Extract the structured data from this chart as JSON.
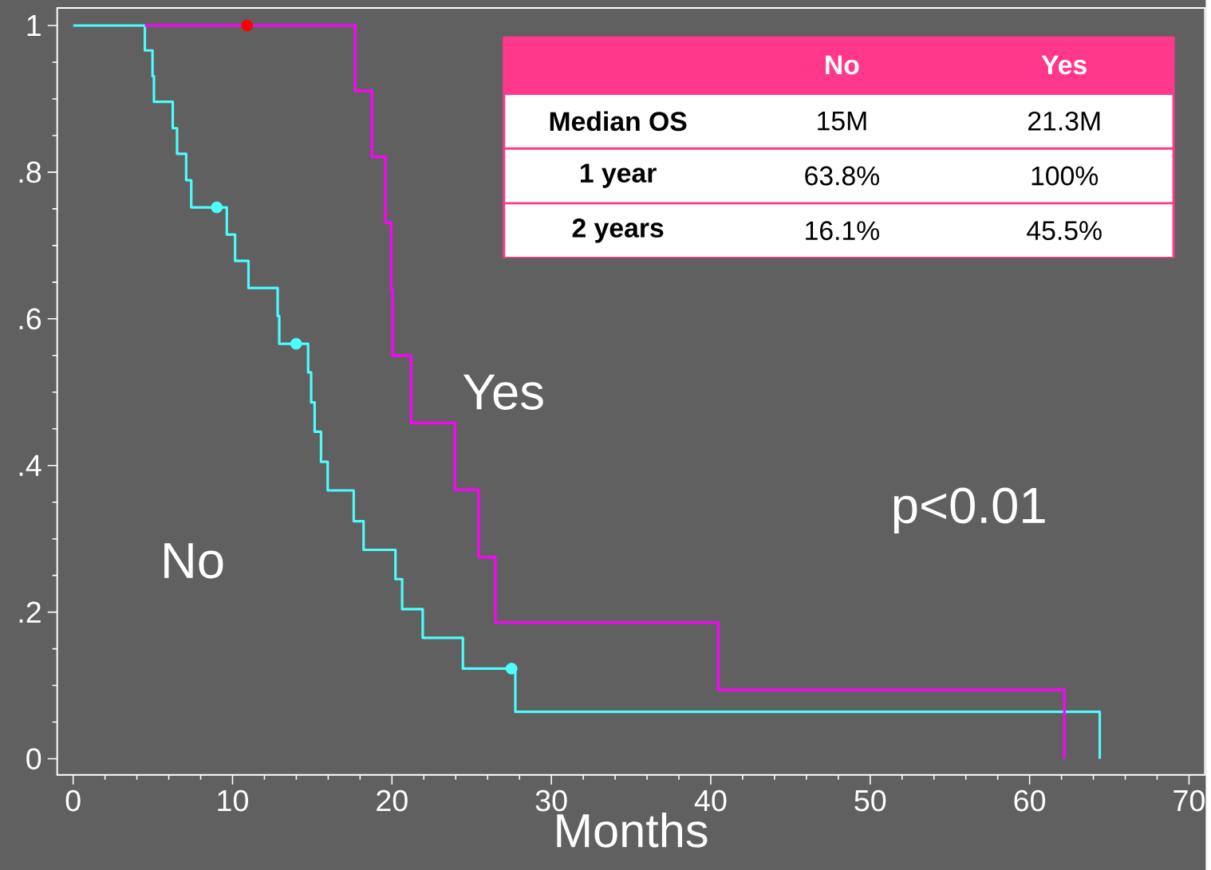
{
  "chart_data": {
    "type": "step",
    "xlabel": "Months",
    "xlim": [
      -1,
      71
    ],
    "ylim": [
      -0.022,
      1.024
    ],
    "xticks": [
      0,
      10,
      20,
      30,
      40,
      50,
      60,
      70
    ],
    "yticks": [
      0,
      {
        "value": 0.2,
        "label": ".2"
      },
      {
        "value": 0.4,
        "label": ".4"
      },
      {
        "value": 0.6,
        "label": ".6"
      },
      {
        "value": 0.8,
        "label": ".8"
      },
      1
    ],
    "marker": "none",
    "line_style": "solid",
    "annotations": [
      "No",
      "Yes",
      "Median OS",
      "15M",
      "21.3M",
      "1 year",
      "63.8%",
      "100%",
      "2 years",
      "16.1%",
      "45.5%",
      "p<0.01"
    ],
    "series": [
      {
        "name": "No",
        "color": "#4dfcfc",
        "x": [
          0,
          4.5,
          4.98,
          5.07,
          6.25,
          6.52,
          7.09,
          7.41,
          9.64,
          10.16,
          11.0,
          12.83,
          12.93,
          14.74,
          14.93,
          15.15,
          15.55,
          15.97,
          17.6,
          18.22,
          20.22,
          20.64,
          21.93,
          24.45,
          27.74,
          64.4
        ],
        "values": [
          1,
          0.966,
          0.931,
          0.896,
          0.86,
          0.825,
          0.789,
          0.752,
          0.715,
          0.679,
          0.642,
          0.604,
          0.566,
          0.527,
          0.486,
          0.446,
          0.405,
          0.366,
          0.324,
          0.285,
          0.245,
          0.204,
          0.165,
          0.123,
          0.064,
          0
        ]
      },
      {
        "name": "Yes",
        "color": "#ff00ff",
        "x": [
          4.5,
          17.69,
          18.75,
          19.6,
          19.96,
          20.04,
          21.2,
          23.94,
          25.43,
          26.49,
          40.46,
          62.18
        ],
        "values": [
          1,
          0.911,
          0.821,
          0.731,
          0.639,
          0.55,
          0.458,
          0.367,
          0.275,
          0.186,
          0.094,
          0
        ]
      },
      {
        "type": "scatter",
        "marker": "circle",
        "color": "#4dfcfc",
        "x": [
          9.01,
          13.99,
          27.5
        ],
        "values": [
          0.752,
          0.566,
          0.123
        ]
      },
      {
        "type": "scatter",
        "marker": "circle",
        "color": "#ff0000",
        "x": [
          10.91
        ],
        "values": [
          1
        ]
      }
    ]
  }
}
